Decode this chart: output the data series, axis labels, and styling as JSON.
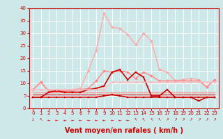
{
  "x": [
    0,
    1,
    2,
    3,
    4,
    5,
    6,
    7,
    8,
    9,
    10,
    11,
    12,
    13,
    14,
    15,
    16,
    17,
    18,
    19,
    20,
    21,
    22,
    23
  ],
  "series": [
    {
      "name": "rafales_max",
      "color": "#ffaaaa",
      "lw": 1.0,
      "marker": "D",
      "markersize": 2.0,
      "y": [
        7.5,
        10.5,
        7.0,
        7.0,
        7.0,
        7.5,
        8.0,
        15.0,
        23.0,
        38.0,
        32.5,
        32.0,
        29.5,
        25.5,
        30.0,
        27.0,
        15.5,
        14.5,
        11.0,
        11.5,
        12.0,
        11.5,
        8.5,
        11.5
      ]
    },
    {
      "name": "rafales_mid",
      "color": "#ff8888",
      "lw": 1.0,
      "marker": "D",
      "markersize": 2.0,
      "y": [
        7.5,
        10.5,
        7.0,
        7.0,
        7.0,
        7.0,
        7.5,
        8.0,
        11.0,
        15.0,
        14.5,
        15.0,
        14.5,
        12.0,
        14.5,
        13.0,
        11.0,
        11.0,
        11.0,
        11.0,
        11.0,
        11.0,
        8.5,
        11.5
      ]
    },
    {
      "name": "vent_moyen_dark",
      "color": "#cc0000",
      "lw": 1.2,
      "marker": "s",
      "markersize": 2.0,
      "y": [
        4.5,
        4.5,
        6.5,
        7.0,
        6.5,
        6.5,
        6.5,
        7.5,
        8.0,
        9.0,
        14.5,
        15.5,
        11.5,
        14.5,
        12.5,
        5.0,
        5.0,
        7.5,
        4.5,
        4.5,
        4.5,
        3.0,
        4.5,
        4.5
      ]
    },
    {
      "name": "vent_flat1",
      "color": "#ffbbbb",
      "lw": 1.0,
      "marker": "D",
      "markersize": 1.8,
      "y": [
        7.5,
        7.5,
        7.5,
        7.5,
        7.5,
        7.5,
        7.5,
        7.5,
        7.5,
        7.5,
        10.5,
        10.5,
        10.5,
        10.5,
        10.5,
        10.5,
        10.5,
        10.5,
        10.5,
        10.5,
        10.5,
        10.5,
        10.5,
        10.5
      ]
    },
    {
      "name": "vent_flat2",
      "color": "#ff9999",
      "lw": 1.0,
      "marker": null,
      "markersize": 0,
      "y": [
        6.5,
        6.5,
        6.5,
        6.5,
        6.5,
        6.5,
        6.5,
        6.5,
        6.5,
        6.5,
        6.5,
        6.5,
        6.5,
        6.5,
        6.5,
        6.5,
        6.5,
        6.5,
        6.5,
        6.5,
        6.5,
        6.5,
        6.5,
        6.5
      ]
    },
    {
      "name": "vent_flat3",
      "color": "#dd4444",
      "lw": 1.0,
      "marker": null,
      "markersize": 0,
      "y": [
        5.5,
        5.5,
        5.5,
        5.5,
        5.5,
        5.5,
        5.5,
        5.5,
        5.5,
        5.5,
        5.5,
        5.5,
        5.5,
        5.5,
        5.5,
        5.5,
        5.5,
        5.5,
        5.5,
        5.5,
        5.5,
        5.5,
        5.5,
        5.5
      ]
    },
    {
      "name": "vent_min",
      "color": "#cc0000",
      "lw": 1.2,
      "marker": "s",
      "markersize": 2.0,
      "y": [
        4.5,
        4.5,
        4.5,
        4.5,
        4.5,
        4.5,
        4.5,
        4.5,
        4.5,
        5.0,
        5.5,
        5.0,
        4.5,
        4.5,
        4.5,
        4.5,
        4.5,
        4.5,
        4.5,
        4.5,
        4.5,
        4.5,
        4.5,
        4.5
      ]
    }
  ],
  "arrow_chars": [
    "↓",
    "↖",
    "←",
    "←",
    "←",
    "←",
    "←",
    "←",
    "←",
    "←",
    "←",
    "←",
    "←",
    "↖",
    "↖",
    "↖",
    "↖",
    "↗",
    "↗",
    "↗",
    "↗",
    "↗",
    "↗",
    "↗"
  ],
  "xlabel": "Vent moyen/en rafales ( km/h )",
  "xlim": [
    -0.5,
    23.5
  ],
  "ylim": [
    0,
    40
  ],
  "yticks": [
    0,
    5,
    10,
    15,
    20,
    25,
    30,
    35,
    40
  ],
  "xticks": [
    0,
    1,
    2,
    3,
    4,
    5,
    6,
    7,
    8,
    9,
    10,
    11,
    12,
    13,
    14,
    15,
    16,
    17,
    18,
    19,
    20,
    21,
    22,
    23
  ],
  "bg_color": "#cce8e8",
  "grid_color": "#aad4d4",
  "tick_color": "#cc0000",
  "label_color": "#cc0000",
  "xlabel_fontsize": 7,
  "tick_fontsize": 5
}
